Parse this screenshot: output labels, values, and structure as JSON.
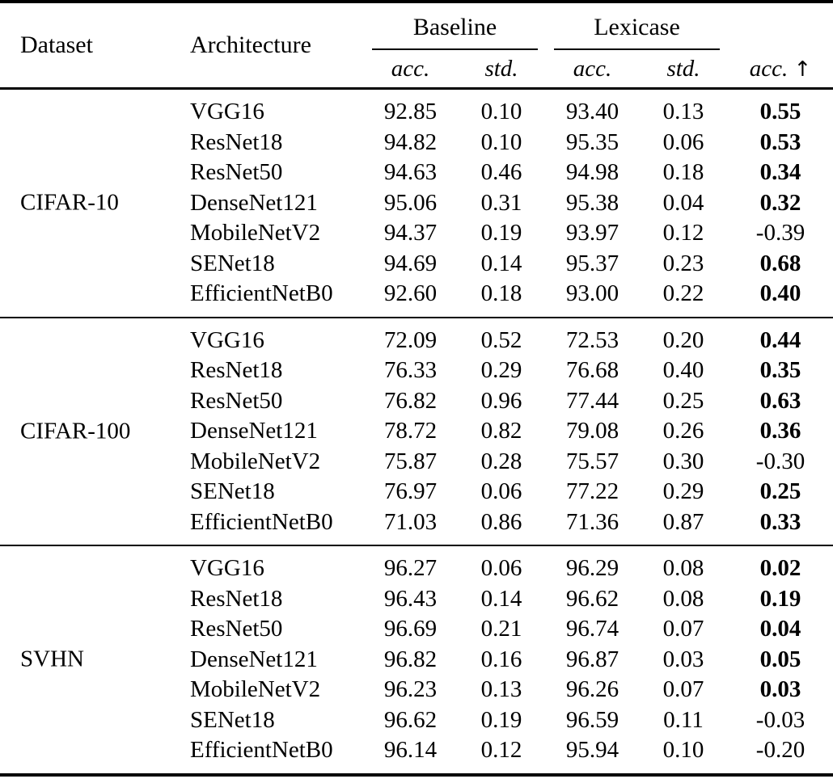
{
  "table": {
    "header": {
      "dataset": "Dataset",
      "architecture": "Architecture",
      "baseline": "Baseline",
      "lexicase": "Lexicase",
      "acc": "acc.",
      "std": "std.",
      "acc_delta": "acc.",
      "up_arrow": "↑"
    },
    "blocks": [
      {
        "dataset": "CIFAR-10",
        "rows": [
          {
            "architecture": "VGG16",
            "baseline_acc": "92.85",
            "baseline_std": "0.10",
            "lexicase_acc": "93.40",
            "lexicase_std": "0.13",
            "acc_delta": "0.55",
            "delta_bold": true
          },
          {
            "architecture": "ResNet18",
            "baseline_acc": "94.82",
            "baseline_std": "0.10",
            "lexicase_acc": "95.35",
            "lexicase_std": "0.06",
            "acc_delta": "0.53",
            "delta_bold": true
          },
          {
            "architecture": "ResNet50",
            "baseline_acc": "94.63",
            "baseline_std": "0.46",
            "lexicase_acc": "94.98",
            "lexicase_std": "0.18",
            "acc_delta": "0.34",
            "delta_bold": true
          },
          {
            "architecture": "DenseNet121",
            "baseline_acc": "95.06",
            "baseline_std": "0.31",
            "lexicase_acc": "95.38",
            "lexicase_std": "0.04",
            "acc_delta": "0.32",
            "delta_bold": true
          },
          {
            "architecture": "MobileNetV2",
            "baseline_acc": "94.37",
            "baseline_std": "0.19",
            "lexicase_acc": "93.97",
            "lexicase_std": "0.12",
            "acc_delta": "-0.39",
            "delta_bold": false
          },
          {
            "architecture": "SENet18",
            "baseline_acc": "94.69",
            "baseline_std": "0.14",
            "lexicase_acc": "95.37",
            "lexicase_std": "0.23",
            "acc_delta": "0.68",
            "delta_bold": true
          },
          {
            "architecture": "EfficientNetB0",
            "baseline_acc": "92.60",
            "baseline_std": "0.18",
            "lexicase_acc": "93.00",
            "lexicase_std": "0.22",
            "acc_delta": "0.40",
            "delta_bold": true
          }
        ]
      },
      {
        "dataset": "CIFAR-100",
        "rows": [
          {
            "architecture": "VGG16",
            "baseline_acc": "72.09",
            "baseline_std": "0.52",
            "lexicase_acc": "72.53",
            "lexicase_std": "0.20",
            "acc_delta": "0.44",
            "delta_bold": true
          },
          {
            "architecture": "ResNet18",
            "baseline_acc": "76.33",
            "baseline_std": "0.29",
            "lexicase_acc": "76.68",
            "lexicase_std": "0.40",
            "acc_delta": "0.35",
            "delta_bold": true
          },
          {
            "architecture": "ResNet50",
            "baseline_acc": "76.82",
            "baseline_std": "0.96",
            "lexicase_acc": "77.44",
            "lexicase_std": "0.25",
            "acc_delta": "0.63",
            "delta_bold": true
          },
          {
            "architecture": "DenseNet121",
            "baseline_acc": "78.72",
            "baseline_std": "0.82",
            "lexicase_acc": "79.08",
            "lexicase_std": "0.26",
            "acc_delta": "0.36",
            "delta_bold": true
          },
          {
            "architecture": "MobileNetV2",
            "baseline_acc": "75.87",
            "baseline_std": "0.28",
            "lexicase_acc": "75.57",
            "lexicase_std": "0.30",
            "acc_delta": "-0.30",
            "delta_bold": false
          },
          {
            "architecture": "SENet18",
            "baseline_acc": "76.97",
            "baseline_std": "0.06",
            "lexicase_acc": "77.22",
            "lexicase_std": "0.29",
            "acc_delta": "0.25",
            "delta_bold": true
          },
          {
            "architecture": "EfficientNetB0",
            "baseline_acc": "71.03",
            "baseline_std": "0.86",
            "lexicase_acc": "71.36",
            "lexicase_std": "0.87",
            "acc_delta": "0.33",
            "delta_bold": true
          }
        ]
      },
      {
        "dataset": "SVHN",
        "rows": [
          {
            "architecture": "VGG16",
            "baseline_acc": "96.27",
            "baseline_std": "0.06",
            "lexicase_acc": "96.29",
            "lexicase_std": "0.08",
            "acc_delta": "0.02",
            "delta_bold": true
          },
          {
            "architecture": "ResNet18",
            "baseline_acc": "96.43",
            "baseline_std": "0.14",
            "lexicase_acc": "96.62",
            "lexicase_std": "0.08",
            "acc_delta": "0.19",
            "delta_bold": true
          },
          {
            "architecture": "ResNet50",
            "baseline_acc": "96.69",
            "baseline_std": "0.21",
            "lexicase_acc": "96.74",
            "lexicase_std": "0.07",
            "acc_delta": "0.04",
            "delta_bold": true
          },
          {
            "architecture": "DenseNet121",
            "baseline_acc": "96.82",
            "baseline_std": "0.16",
            "lexicase_acc": "96.87",
            "lexicase_std": "0.03",
            "acc_delta": "0.05",
            "delta_bold": true
          },
          {
            "architecture": "MobileNetV2",
            "baseline_acc": "96.23",
            "baseline_std": "0.13",
            "lexicase_acc": "96.26",
            "lexicase_std": "0.07",
            "acc_delta": "0.03",
            "delta_bold": true
          },
          {
            "architecture": "SENet18",
            "baseline_acc": "96.62",
            "baseline_std": "0.19",
            "lexicase_acc": "96.59",
            "lexicase_std": "0.11",
            "acc_delta": "-0.03",
            "delta_bold": false
          },
          {
            "architecture": "EfficientNetB0",
            "baseline_acc": "96.14",
            "baseline_std": "0.12",
            "lexicase_acc": "95.94",
            "lexicase_std": "0.10",
            "acc_delta": "-0.20",
            "delta_bold": false
          }
        ]
      }
    ]
  }
}
